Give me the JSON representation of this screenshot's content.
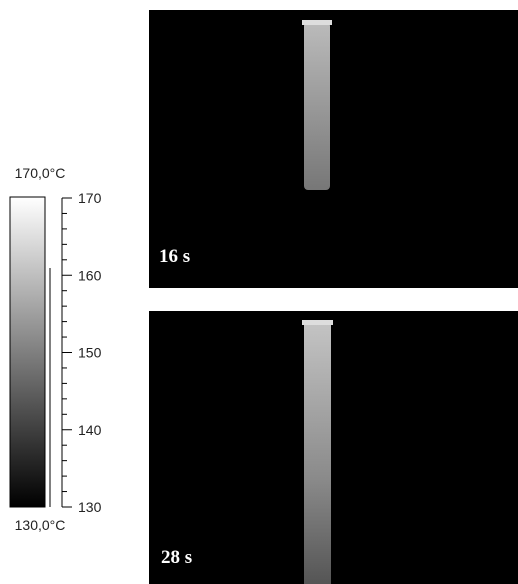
{
  "colorbar": {
    "max_label": "170,0°C",
    "min_label": "130,0°C",
    "range": [
      130,
      170
    ],
    "ticks": [
      170,
      160,
      150,
      140,
      130
    ]
  },
  "panels": [
    {
      "label": "16 s"
    },
    {
      "label": "28 s"
    }
  ]
}
